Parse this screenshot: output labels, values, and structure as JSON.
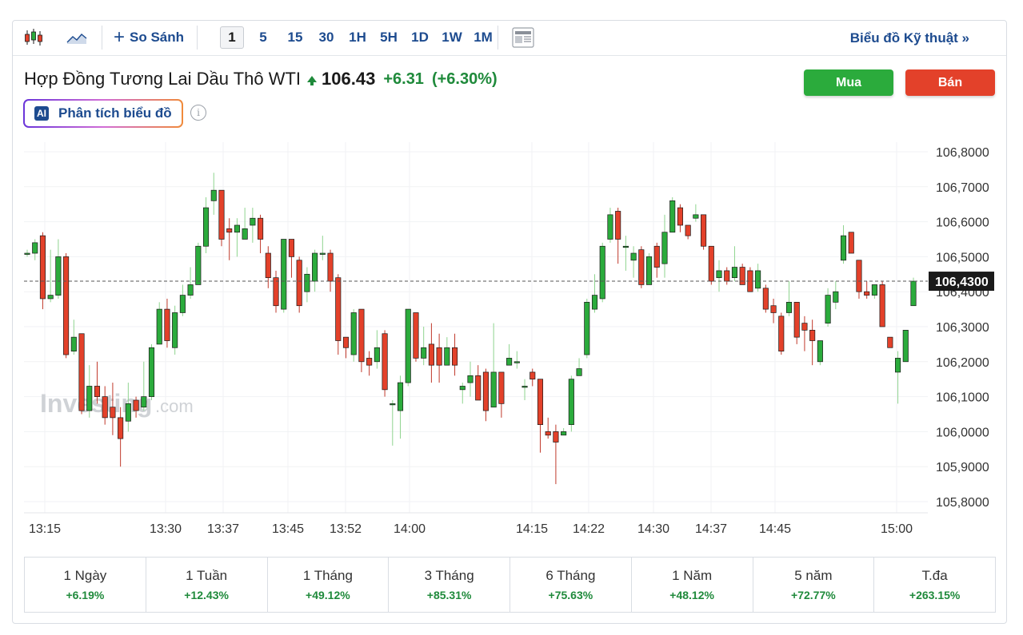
{
  "toolbar": {
    "compare_label": "So Sánh",
    "timeframes": [
      "1",
      "5",
      "15",
      "30",
      "1H",
      "5H",
      "1D",
      "1W",
      "1M"
    ],
    "active_timeframe": "1",
    "tech_chart_label": "Biểu đồ Kỹ thuật »"
  },
  "instrument": {
    "name": "Hợp Đồng Tương Lai Dầu Thô WTI",
    "price": "106.43",
    "change": "+6.31",
    "change_pct": "(+6.30%)"
  },
  "buttons": {
    "buy": "Mua",
    "sell": "Bán"
  },
  "ai": {
    "badge": "AI",
    "label": "Phân tích biểu đồ",
    "info_icon": "i"
  },
  "watermark": {
    "brand": "Investing",
    "suffix": ".com"
  },
  "colors": {
    "up": "#2bab3c",
    "down": "#e3412a",
    "accent": "#1d4b8f"
  },
  "chart_data": {
    "type": "candlestick",
    "current_price_label": "106,4300",
    "current_price": 106.43,
    "ylim": [
      105.78,
      106.82
    ],
    "y_ticks": [
      "106,8000",
      "106,7000",
      "106,6000",
      "106,5000",
      "106,4000",
      "106,3000",
      "106,2000",
      "106,1000",
      "106,0000",
      "105,9000",
      "105,8000"
    ],
    "x_ticks": [
      "13:15",
      "13:30",
      "13:37",
      "13:45",
      "13:52",
      "14:00",
      "14:15",
      "14:22",
      "14:30",
      "14:37",
      "14:45",
      "15:00"
    ],
    "candles": [
      [
        106.51,
        106.51,
        106.52,
        106.5
      ],
      [
        106.51,
        106.54,
        106.55,
        106.49
      ],
      [
        106.56,
        106.38,
        106.57,
        106.35
      ],
      [
        106.38,
        106.39,
        106.52,
        106.37
      ],
      [
        106.39,
        106.5,
        106.55,
        106.38
      ],
      [
        106.5,
        106.22,
        106.51,
        106.21
      ],
      [
        106.23,
        106.27,
        106.32,
        106.22
      ],
      [
        106.28,
        106.06,
        106.28,
        106.05
      ],
      [
        106.06,
        106.13,
        106.19,
        106.04
      ],
      [
        106.13,
        106.1,
        106.2,
        106.08
      ],
      [
        106.1,
        106.04,
        106.13,
        106.02
      ],
      [
        106.07,
        106.04,
        106.14,
        105.99
      ],
      [
        106.04,
        105.98,
        106.07,
        105.9
      ],
      [
        106.03,
        106.08,
        106.14,
        106.0
      ],
      [
        106.09,
        106.06,
        106.1,
        106.04
      ],
      [
        106.07,
        106.1,
        106.2,
        106.06
      ],
      [
        106.1,
        106.24,
        106.25,
        106.09
      ],
      [
        106.25,
        106.35,
        106.37,
        106.25
      ],
      [
        106.35,
        106.26,
        106.38,
        106.24
      ],
      [
        106.24,
        106.34,
        106.36,
        106.22
      ],
      [
        106.34,
        106.39,
        106.42,
        106.33
      ],
      [
        106.39,
        106.42,
        106.47,
        106.38
      ],
      [
        106.42,
        106.53,
        106.54,
        106.42
      ],
      [
        106.53,
        106.64,
        106.67,
        106.51
      ],
      [
        106.66,
        106.69,
        106.74,
        106.62
      ],
      [
        106.69,
        106.55,
        106.69,
        106.53
      ],
      [
        106.58,
        106.57,
        106.61,
        106.49
      ],
      [
        106.57,
        106.59,
        106.61,
        106.5
      ],
      [
        106.55,
        106.58,
        106.64,
        106.55
      ],
      [
        106.59,
        106.61,
        106.64,
        106.54
      ],
      [
        106.61,
        106.55,
        106.62,
        106.51
      ],
      [
        106.51,
        106.44,
        106.53,
        106.41
      ],
      [
        106.44,
        106.36,
        106.46,
        106.34
      ],
      [
        106.35,
        106.55,
        106.55,
        106.34
      ],
      [
        106.55,
        106.5,
        106.55,
        106.44
      ],
      [
        106.49,
        106.36,
        106.5,
        106.34
      ],
      [
        106.4,
        106.45,
        106.47,
        106.37
      ],
      [
        106.43,
        106.51,
        106.52,
        106.4
      ],
      [
        106.51,
        106.51,
        106.56,
        106.49
      ],
      [
        106.51,
        106.43,
        106.52,
        106.4
      ],
      [
        106.44,
        106.26,
        106.45,
        106.22
      ],
      [
        106.27,
        106.24,
        106.27,
        106.21
      ],
      [
        106.22,
        106.34,
        106.35,
        106.2
      ],
      [
        106.35,
        106.2,
        106.35,
        106.17
      ],
      [
        106.21,
        106.19,
        106.23,
        106.16
      ],
      [
        106.2,
        106.24,
        106.29,
        106.18
      ],
      [
        106.28,
        106.12,
        106.29,
        106.1
      ],
      [
        106.08,
        106.08,
        106.09,
        105.96
      ],
      [
        106.06,
        106.14,
        106.16,
        105.98
      ],
      [
        106.14,
        106.35,
        106.35,
        106.13
      ],
      [
        106.34,
        106.21,
        106.34,
        106.2
      ],
      [
        106.21,
        106.24,
        106.3,
        106.19
      ],
      [
        106.25,
        106.19,
        106.31,
        106.14
      ],
      [
        106.24,
        106.19,
        106.28,
        106.14
      ],
      [
        106.19,
        106.24,
        106.27,
        106.19
      ],
      [
        106.24,
        106.19,
        106.28,
        106.16
      ],
      [
        106.12,
        106.13,
        106.14,
        106.08
      ],
      [
        106.14,
        106.16,
        106.2,
        106.1
      ],
      [
        106.16,
        106.09,
        106.19,
        106.09
      ],
      [
        106.17,
        106.06,
        106.18,
        106.03
      ],
      [
        106.07,
        106.17,
        106.31,
        106.07
      ],
      [
        106.17,
        106.08,
        106.17,
        106.04
      ],
      [
        106.19,
        106.21,
        106.25,
        106.19
      ],
      [
        106.2,
        106.2,
        106.23,
        106.18
      ],
      [
        106.13,
        106.13,
        106.15,
        106.09
      ],
      [
        106.17,
        106.15,
        106.18,
        106.13
      ],
      [
        106.15,
        106.02,
        106.15,
        105.94
      ],
      [
        106.0,
        105.99,
        106.04,
        105.98
      ],
      [
        106.0,
        105.97,
        106.02,
        105.85
      ],
      [
        105.99,
        106.0,
        106.01,
        105.99
      ],
      [
        106.02,
        106.15,
        106.16,
        106.0
      ],
      [
        106.16,
        106.18,
        106.21,
        106.16
      ],
      [
        106.22,
        106.37,
        106.38,
        106.21
      ],
      [
        106.35,
        106.39,
        106.45,
        106.34
      ],
      [
        106.38,
        106.53,
        106.54,
        106.37
      ],
      [
        106.55,
        106.62,
        106.64,
        106.54
      ],
      [
        106.63,
        106.55,
        106.64,
        106.48
      ],
      [
        106.53,
        106.53,
        106.56,
        106.46
      ],
      [
        106.49,
        106.51,
        106.53,
        106.44
      ],
      [
        106.52,
        106.42,
        106.53,
        106.41
      ],
      [
        106.42,
        106.5,
        106.51,
        106.42
      ],
      [
        106.53,
        106.47,
        106.54,
        106.44
      ],
      [
        106.48,
        106.57,
        106.62,
        106.44
      ],
      [
        106.57,
        106.66,
        106.67,
        106.57
      ],
      [
        106.64,
        106.59,
        106.65,
        106.57
      ],
      [
        106.59,
        106.56,
        106.59,
        106.55
      ],
      [
        106.61,
        106.62,
        106.65,
        106.6
      ],
      [
        106.62,
        106.53,
        106.62,
        106.52
      ],
      [
        106.53,
        106.43,
        106.53,
        106.42
      ],
      [
        106.44,
        106.46,
        106.49,
        106.4
      ],
      [
        106.46,
        106.43,
        106.47,
        106.42
      ],
      [
        106.44,
        106.47,
        106.53,
        106.43
      ],
      [
        106.47,
        106.42,
        106.48,
        106.42
      ],
      [
        106.46,
        106.4,
        106.47,
        106.4
      ],
      [
        106.41,
        106.46,
        106.48,
        106.4
      ],
      [
        106.41,
        106.35,
        106.42,
        106.34
      ],
      [
        106.36,
        106.34,
        106.38,
        106.31
      ],
      [
        106.33,
        106.23,
        106.34,
        106.22
      ],
      [
        106.34,
        106.37,
        106.43,
        106.33
      ],
      [
        106.37,
        106.27,
        106.37,
        106.25
      ],
      [
        106.31,
        106.29,
        106.33,
        106.23
      ],
      [
        106.29,
        106.26,
        106.32,
        106.19
      ],
      [
        106.2,
        106.26,
        106.26,
        106.19
      ],
      [
        106.31,
        106.39,
        106.41,
        106.3
      ],
      [
        106.37,
        106.4,
        106.43,
        106.35
      ],
      [
        106.49,
        106.56,
        106.59,
        106.48
      ],
      [
        106.57,
        106.51,
        106.57,
        106.51
      ],
      [
        106.49,
        106.4,
        106.49,
        106.38
      ],
      [
        106.4,
        106.39,
        106.43,
        106.38
      ],
      [
        106.39,
        106.42,
        106.42,
        106.38
      ],
      [
        106.42,
        106.3,
        106.43,
        106.3
      ],
      [
        106.27,
        106.24,
        106.27,
        106.24
      ],
      [
        106.17,
        106.21,
        106.23,
        106.08
      ],
      [
        106.2,
        106.29,
        106.29,
        106.2
      ],
      [
        106.36,
        106.43,
        106.44,
        106.36
      ]
    ]
  },
  "performance": [
    {
      "label": "1 Ngày",
      "value": "+6.19%"
    },
    {
      "label": "1 Tuần",
      "value": "+12.43%"
    },
    {
      "label": "1 Tháng",
      "value": "+49.12%"
    },
    {
      "label": "3 Tháng",
      "value": "+85.31%"
    },
    {
      "label": "6 Tháng",
      "value": "+75.63%"
    },
    {
      "label": "1 Năm",
      "value": "+48.12%"
    },
    {
      "label": "5 năm",
      "value": "+72.77%"
    },
    {
      "label": "T.đa",
      "value": "+263.15%"
    }
  ]
}
